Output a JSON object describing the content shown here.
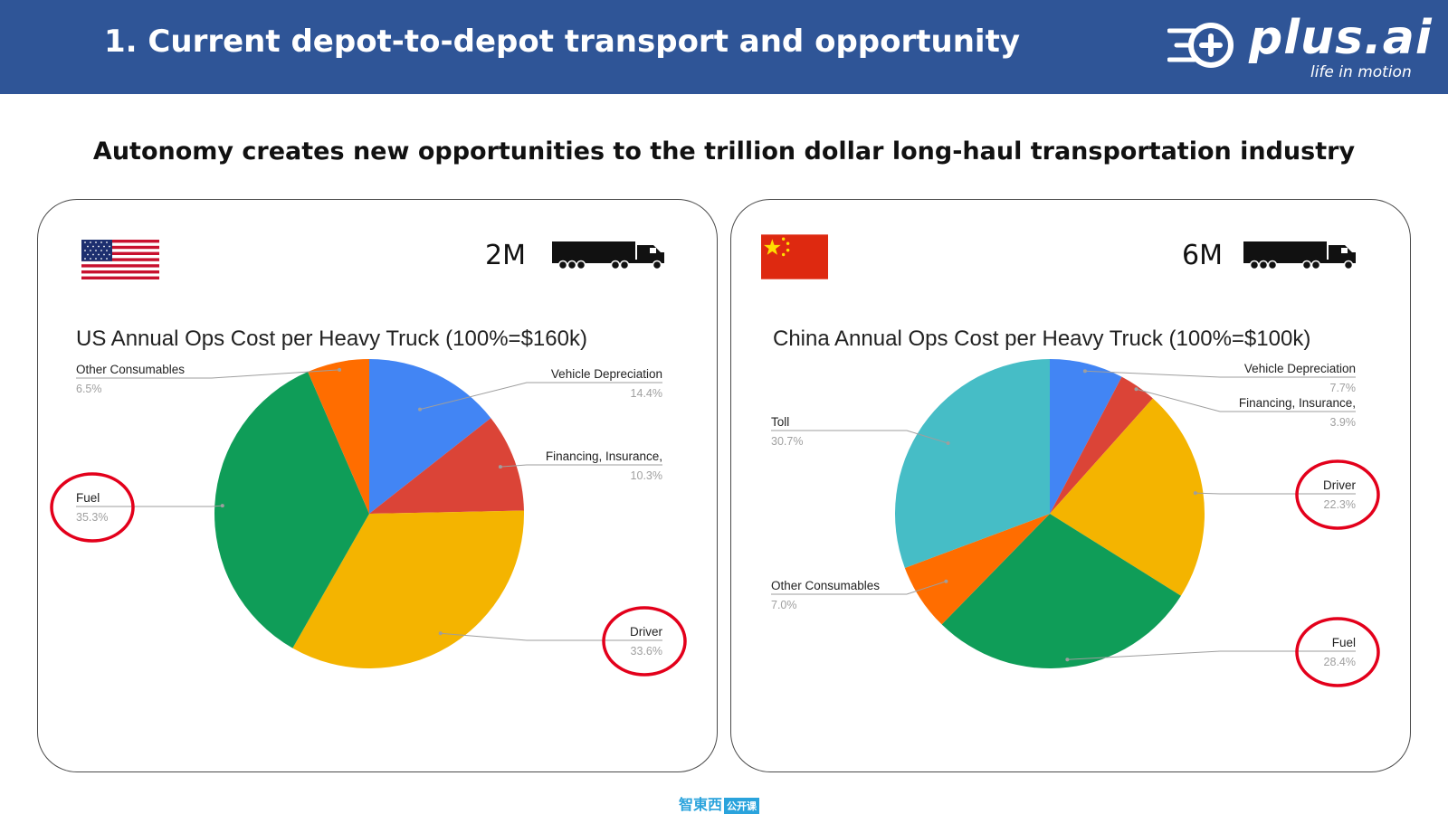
{
  "header": {
    "title": "1. Current depot-to-depot transport and opportunity",
    "logo_text": "plus.ai",
    "logo_tagline": "life in motion"
  },
  "subtitle": "Autonomy creates new opportunities to the trillion dollar long-haul transportation industry",
  "panels": {
    "us": {
      "truck_count": "2M"
    },
    "cn": {
      "truck_count": "6M"
    }
  },
  "footer": {
    "logo_text": "智東西",
    "logo_box": "公开课"
  },
  "colors": {
    "blue": "#4285f4",
    "red": "#db4437",
    "yellow": "#f4b400",
    "green": "#0f9d58",
    "orange": "#ff6d00",
    "teal": "#46bdc6",
    "highlight_circle": "#e3001b",
    "header_bg": "#2f5597"
  },
  "chart_data": [
    {
      "type": "pie",
      "title": "US Annual Ops Cost per Heavy Truck (100%=$160k)",
      "slices": [
        {
          "label": "Vehicle Depreciation",
          "value": 14.4,
          "display": "14.4%",
          "color": "#4285f4",
          "highlighted": false
        },
        {
          "label": "Financing, Insurance,",
          "value": 10.3,
          "display": "10.3%",
          "color": "#db4437",
          "highlighted": false
        },
        {
          "label": "Driver",
          "value": 33.6,
          "display": "33.6%",
          "color": "#f4b400",
          "highlighted": true
        },
        {
          "label": "Fuel",
          "value": 35.3,
          "display": "35.3%",
          "color": "#0f9d58",
          "highlighted": true
        },
        {
          "label": "Other Consumables",
          "value": 6.5,
          "display": "6.5%",
          "color": "#ff6d00",
          "highlighted": false
        }
      ]
    },
    {
      "type": "pie",
      "title": "China Annual Ops Cost per Heavy Truck (100%=$100k)",
      "slices": [
        {
          "label": "Vehicle Depreciation",
          "value": 7.7,
          "display": "7.7%",
          "color": "#4285f4",
          "highlighted": false
        },
        {
          "label": "Financing, Insurance,",
          "value": 3.9,
          "display": "3.9%",
          "color": "#db4437",
          "highlighted": false
        },
        {
          "label": "Driver",
          "value": 22.3,
          "display": "22.3%",
          "color": "#f4b400",
          "highlighted": true
        },
        {
          "label": "Fuel",
          "value": 28.4,
          "display": "28.4%",
          "color": "#0f9d58",
          "highlighted": true
        },
        {
          "label": "Other Consumables",
          "value": 7.0,
          "display": "7.0%",
          "color": "#ff6d00",
          "highlighted": false
        },
        {
          "label": "Toll",
          "value": 30.7,
          "display": "30.7%",
          "color": "#46bdc6",
          "highlighted": false
        }
      ]
    }
  ]
}
